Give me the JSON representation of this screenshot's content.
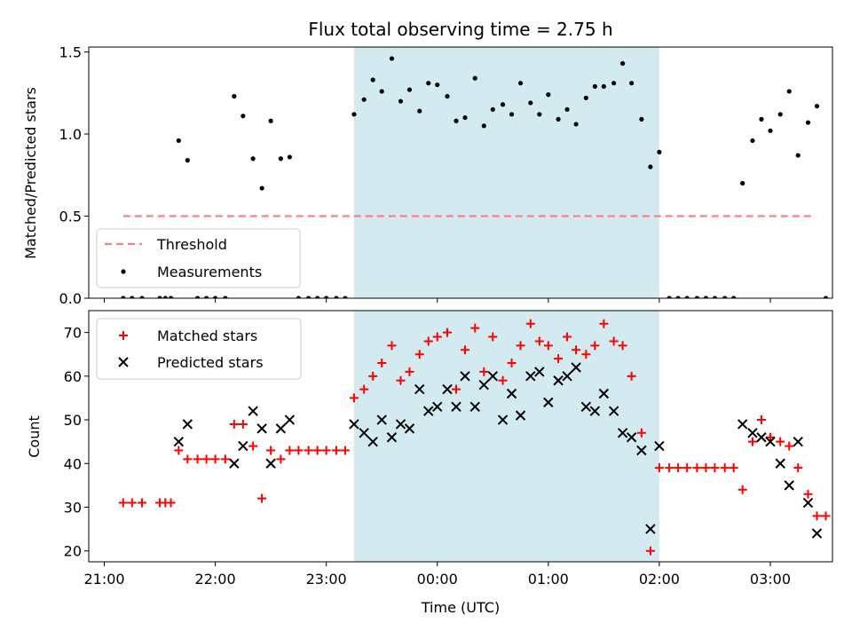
{
  "chart_data": [
    {
      "type": "scatter",
      "title": "Flux total observing time = 2.75 h",
      "xlabel": "",
      "ylabel": "Matched/Predicted stars",
      "ylim": [
        0,
        1.53
      ],
      "yticks": [
        "0.0",
        "0.5",
        "1.0",
        "1.5"
      ],
      "ytick_values": [
        0,
        0.5,
        1.0,
        1.5
      ],
      "xlim": [
        -0.14,
        6.56
      ],
      "xticks": [
        "21:00",
        "22:00",
        "23:00",
        "00:00",
        "01:00",
        "02:00",
        "03:00"
      ],
      "xtick_values": [
        0,
        1,
        2,
        3,
        4,
        5,
        6
      ],
      "xtick_labels_visible": false,
      "shaded_region": [
        2.25,
        5.0
      ],
      "shaded_color": "#d3eaf1",
      "threshold": {
        "name": "Threshold",
        "value": 0.5,
        "x_range": [
          0.17,
          6.4
        ],
        "color": "#ff7f7f",
        "style": "dashed"
      },
      "legend": {
        "placement": "lower-left",
        "entries": [
          "Threshold",
          "Measurements"
        ]
      },
      "series": [
        {
          "name": "Measurements",
          "color": "#000000",
          "marker": "dot",
          "points": [
            [
              0.17,
              0
            ],
            [
              0.25,
              0
            ],
            [
              0.34,
              0
            ],
            [
              0.5,
              0
            ],
            [
              0.55,
              0
            ],
            [
              0.6,
              0
            ],
            [
              0.67,
              0.96
            ],
            [
              0.75,
              0.84
            ],
            [
              0.84,
              0
            ],
            [
              0.92,
              0
            ],
            [
              1.0,
              0
            ],
            [
              1.09,
              0
            ],
            [
              1.17,
              1.23
            ],
            [
              1.25,
              1.11
            ],
            [
              1.34,
              0.85
            ],
            [
              1.42,
              0.67
            ],
            [
              1.5,
              1.08
            ],
            [
              1.59,
              0.85
            ],
            [
              1.67,
              0.86
            ],
            [
              1.75,
              0
            ],
            [
              1.84,
              0
            ],
            [
              1.92,
              0
            ],
            [
              2.0,
              0
            ],
            [
              2.09,
              0
            ],
            [
              2.17,
              0
            ],
            [
              2.25,
              1.12
            ],
            [
              2.34,
              1.21
            ],
            [
              2.42,
              1.33
            ],
            [
              2.5,
              1.26
            ],
            [
              2.59,
              1.46
            ],
            [
              2.67,
              1.2
            ],
            [
              2.75,
              1.27
            ],
            [
              2.84,
              1.14
            ],
            [
              2.92,
              1.31
            ],
            [
              3.0,
              1.3
            ],
            [
              3.09,
              1.23
            ],
            [
              3.17,
              1.08
            ],
            [
              3.25,
              1.1
            ],
            [
              3.34,
              1.34
            ],
            [
              3.42,
              1.05
            ],
            [
              3.5,
              1.15
            ],
            [
              3.59,
              1.18
            ],
            [
              3.67,
              1.12
            ],
            [
              3.75,
              1.31
            ],
            [
              3.84,
              1.19
            ],
            [
              3.92,
              1.12
            ],
            [
              4.0,
              1.24
            ],
            [
              4.09,
              1.09
            ],
            [
              4.17,
              1.15
            ],
            [
              4.25,
              1.06
            ],
            [
              4.34,
              1.22
            ],
            [
              4.42,
              1.29
            ],
            [
              4.5,
              1.29
            ],
            [
              4.59,
              1.31
            ],
            [
              4.67,
              1.43
            ],
            [
              4.75,
              1.31
            ],
            [
              4.84,
              1.09
            ],
            [
              4.92,
              0.8
            ],
            [
              5.0,
              0.89
            ],
            [
              5.09,
              0
            ],
            [
              5.17,
              0
            ],
            [
              5.25,
              0
            ],
            [
              5.34,
              0
            ],
            [
              5.42,
              0
            ],
            [
              5.5,
              0
            ],
            [
              5.59,
              0
            ],
            [
              5.67,
              0
            ],
            [
              5.75,
              0.7
            ],
            [
              5.84,
              0.96
            ],
            [
              5.92,
              1.09
            ],
            [
              6.0,
              1.02
            ],
            [
              6.09,
              1.12
            ],
            [
              6.17,
              1.26
            ],
            [
              6.25,
              0.87
            ],
            [
              6.34,
              1.07
            ],
            [
              6.42,
              1.17
            ],
            [
              6.5,
              0
            ]
          ]
        }
      ]
    },
    {
      "type": "scatter",
      "title": "",
      "xlabel": "Time (UTC)",
      "ylabel": "Count",
      "ylim": [
        17.5,
        75
      ],
      "yticks": [
        "20",
        "30",
        "40",
        "50",
        "60",
        "70"
      ],
      "ytick_values": [
        20,
        30,
        40,
        50,
        60,
        70
      ],
      "xlim": [
        -0.14,
        6.56
      ],
      "xticks": [
        "21:00",
        "22:00",
        "23:00",
        "00:00",
        "01:00",
        "02:00",
        "03:00"
      ],
      "xtick_values": [
        0,
        1,
        2,
        3,
        4,
        5,
        6
      ],
      "xtick_labels_visible": true,
      "shaded_region": [
        2.25,
        5.0
      ],
      "shaded_color": "#d3eaf1",
      "legend": {
        "placement": "top-left",
        "entries": [
          "Matched stars",
          "Predicted stars"
        ]
      },
      "series": [
        {
          "name": "Matched stars",
          "color": "#ff0000",
          "marker": "plus",
          "points": [
            [
              0.17,
              31
            ],
            [
              0.25,
              31
            ],
            [
              0.34,
              31
            ],
            [
              0.5,
              31
            ],
            [
              0.55,
              31
            ],
            [
              0.6,
              31
            ],
            [
              0.67,
              43
            ],
            [
              0.75,
              41
            ],
            [
              0.84,
              41
            ],
            [
              0.92,
              41
            ],
            [
              1.0,
              41
            ],
            [
              1.09,
              41
            ],
            [
              1.17,
              49
            ],
            [
              1.25,
              49
            ],
            [
              1.34,
              44
            ],
            [
              1.42,
              32
            ],
            [
              1.5,
              43
            ],
            [
              1.59,
              41
            ],
            [
              1.67,
              43
            ],
            [
              1.75,
              43
            ],
            [
              1.84,
              43
            ],
            [
              1.92,
              43
            ],
            [
              2.0,
              43
            ],
            [
              2.09,
              43
            ],
            [
              2.17,
              43
            ],
            [
              2.25,
              55
            ],
            [
              2.34,
              57
            ],
            [
              2.42,
              60
            ],
            [
              2.5,
              63
            ],
            [
              2.59,
              67
            ],
            [
              2.67,
              59
            ],
            [
              2.75,
              61
            ],
            [
              2.84,
              65
            ],
            [
              2.92,
              68
            ],
            [
              3.0,
              69
            ],
            [
              3.09,
              70
            ],
            [
              3.17,
              57
            ],
            [
              3.25,
              66
            ],
            [
              3.34,
              71
            ],
            [
              3.42,
              61
            ],
            [
              3.5,
              69
            ],
            [
              3.59,
              59
            ],
            [
              3.67,
              63
            ],
            [
              3.75,
              67
            ],
            [
              3.84,
              72
            ],
            [
              3.92,
              68
            ],
            [
              4.0,
              67
            ],
            [
              4.09,
              64
            ],
            [
              4.17,
              69
            ],
            [
              4.25,
              66
            ],
            [
              4.34,
              65
            ],
            [
              4.42,
              67
            ],
            [
              4.5,
              72
            ],
            [
              4.59,
              68
            ],
            [
              4.67,
              67
            ],
            [
              4.75,
              60
            ],
            [
              4.84,
              47
            ],
            [
              4.92,
              20
            ],
            [
              5.0,
              39
            ],
            [
              5.09,
              39
            ],
            [
              5.17,
              39
            ],
            [
              5.25,
              39
            ],
            [
              5.34,
              39
            ],
            [
              5.42,
              39
            ],
            [
              5.5,
              39
            ],
            [
              5.59,
              39
            ],
            [
              5.67,
              39
            ],
            [
              5.75,
              34
            ],
            [
              5.84,
              45
            ],
            [
              5.92,
              50
            ],
            [
              6.0,
              46
            ],
            [
              6.09,
              45
            ],
            [
              6.17,
              44
            ],
            [
              6.25,
              39
            ],
            [
              6.34,
              33
            ],
            [
              6.42,
              28
            ],
            [
              6.5,
              28
            ]
          ]
        },
        {
          "name": "Predicted stars",
          "color": "#000000",
          "marker": "cross",
          "points": [
            [
              0.67,
              45
            ],
            [
              0.75,
              49
            ],
            [
              1.17,
              40
            ],
            [
              1.25,
              44
            ],
            [
              1.34,
              52
            ],
            [
              1.42,
              48
            ],
            [
              1.5,
              40
            ],
            [
              1.59,
              48
            ],
            [
              1.67,
              50
            ],
            [
              2.25,
              49
            ],
            [
              2.34,
              47
            ],
            [
              2.42,
              45
            ],
            [
              2.5,
              50
            ],
            [
              2.59,
              46
            ],
            [
              2.67,
              49
            ],
            [
              2.75,
              48
            ],
            [
              2.84,
              57
            ],
            [
              2.92,
              52
            ],
            [
              3.0,
              53
            ],
            [
              3.09,
              57
            ],
            [
              3.17,
              53
            ],
            [
              3.25,
              60
            ],
            [
              3.34,
              53
            ],
            [
              3.42,
              58
            ],
            [
              3.5,
              60
            ],
            [
              3.59,
              50
            ],
            [
              3.67,
              56
            ],
            [
              3.75,
              51
            ],
            [
              3.84,
              60
            ],
            [
              3.92,
              61
            ],
            [
              4.0,
              54
            ],
            [
              4.09,
              59
            ],
            [
              4.17,
              60
            ],
            [
              4.25,
              62
            ],
            [
              4.34,
              53
            ],
            [
              4.42,
              52
            ],
            [
              4.5,
              56
            ],
            [
              4.59,
              52
            ],
            [
              4.67,
              47
            ],
            [
              4.75,
              46
            ],
            [
              4.84,
              43
            ],
            [
              4.92,
              25
            ],
            [
              5.0,
              44
            ],
            [
              5.75,
              49
            ],
            [
              5.84,
              47
            ],
            [
              5.92,
              46
            ],
            [
              6.0,
              45
            ],
            [
              6.09,
              40
            ],
            [
              6.17,
              35
            ],
            [
              6.25,
              45
            ],
            [
              6.34,
              31
            ],
            [
              6.42,
              24
            ]
          ]
        }
      ]
    }
  ]
}
